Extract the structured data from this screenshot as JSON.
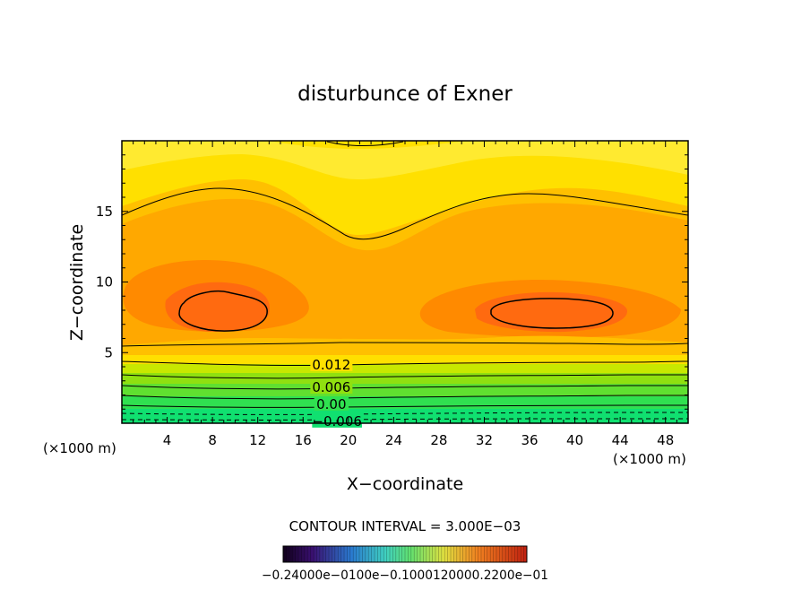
{
  "chart_data": {
    "type": "contour",
    "title": "disturbunce of Exner",
    "xlabel": "X−coordinate",
    "ylabel": "Z−coordinate",
    "x_unit_left": "(×1000 m)",
    "x_unit_right": "(×1000 m)",
    "xlim": [
      0,
      50
    ],
    "ylim": [
      0,
      20
    ],
    "x_ticks": [
      4,
      8,
      12,
      16,
      20,
      24,
      28,
      32,
      36,
      40,
      44,
      48
    ],
    "y_ticks": [
      5,
      10,
      15
    ],
    "x_tick_labels": [
      "4",
      "8",
      "12",
      "16",
      "20",
      "24",
      "28",
      "32",
      "36",
      "40",
      "44",
      "48"
    ],
    "y_tick_labels": [
      "5",
      "10",
      "15"
    ],
    "contour_interval_text": "CONTOUR INTERVAL = 3.000E−03",
    "contour_labels": [
      {
        "text": "0.012",
        "x": 18.5,
        "y": 4.2
      },
      {
        "text": "0.006",
        "x": 18.5,
        "y": 2.6
      },
      {
        "text": "0.00",
        "x": 18.5,
        "y": 1.4
      },
      {
        "text": "−0.006",
        "x": 19.0,
        "y": 0.2
      }
    ],
    "colorbar": {
      "range": [
        -0.024,
        0.024
      ],
      "tick_text": "−0.24000e−0100e−0.1000120000.2200e−01"
    },
    "colors": {
      "green_low": "#10e070",
      "green_mid": "#70e020",
      "yellow_green": "#c8e800",
      "yellow": "#ffe000",
      "light_orange": "#ffc000",
      "orange": "#ffa800",
      "dark_orange": "#ff8a00",
      "red_orange": "#ff6a10"
    }
  }
}
